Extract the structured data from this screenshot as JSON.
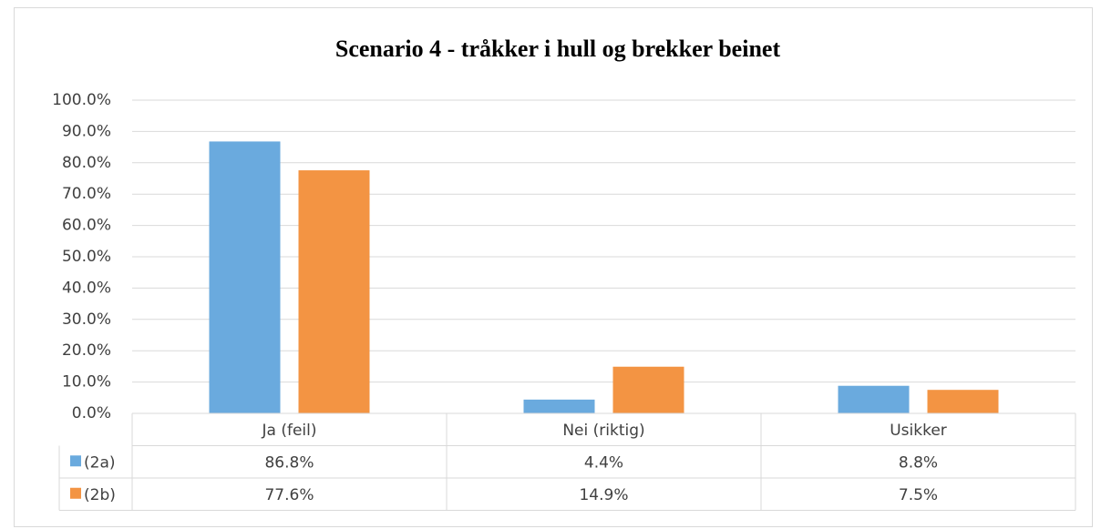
{
  "chart_data": {
    "type": "bar",
    "title": "Scenario 4 - tråkker i hull og brekker beinet",
    "categories": [
      "Ja (feil)",
      "Nei (riktig)",
      "Usikker"
    ],
    "series": [
      {
        "name": "(2a)",
        "color": "#6aaade",
        "values": [
          86.8,
          4.4,
          8.8
        ],
        "value_labels": [
          "86.8%",
          "4.4%",
          "8.8%"
        ]
      },
      {
        "name": "(2b)",
        "color": "#f39443",
        "values": [
          77.6,
          14.9,
          7.5
        ],
        "value_labels": [
          "77.6%",
          "14.9%",
          "7.5%"
        ]
      }
    ],
    "ylim": [
      0,
      100
    ],
    "yticks": [
      {
        "value": 0,
        "label": "0.0%"
      },
      {
        "value": 10,
        "label": "10.0%"
      },
      {
        "value": 20,
        "label": "20.0%"
      },
      {
        "value": 30,
        "label": "30.0%"
      },
      {
        "value": 40,
        "label": "40.0%"
      },
      {
        "value": 50,
        "label": "50.0%"
      },
      {
        "value": 60,
        "label": "60.0%"
      },
      {
        "value": 70,
        "label": "70.0%"
      },
      {
        "value": 80,
        "label": "80.0%"
      },
      {
        "value": 90,
        "label": "90.0%"
      },
      {
        "value": 100,
        "label": "100.0%"
      }
    ],
    "grid": true
  }
}
